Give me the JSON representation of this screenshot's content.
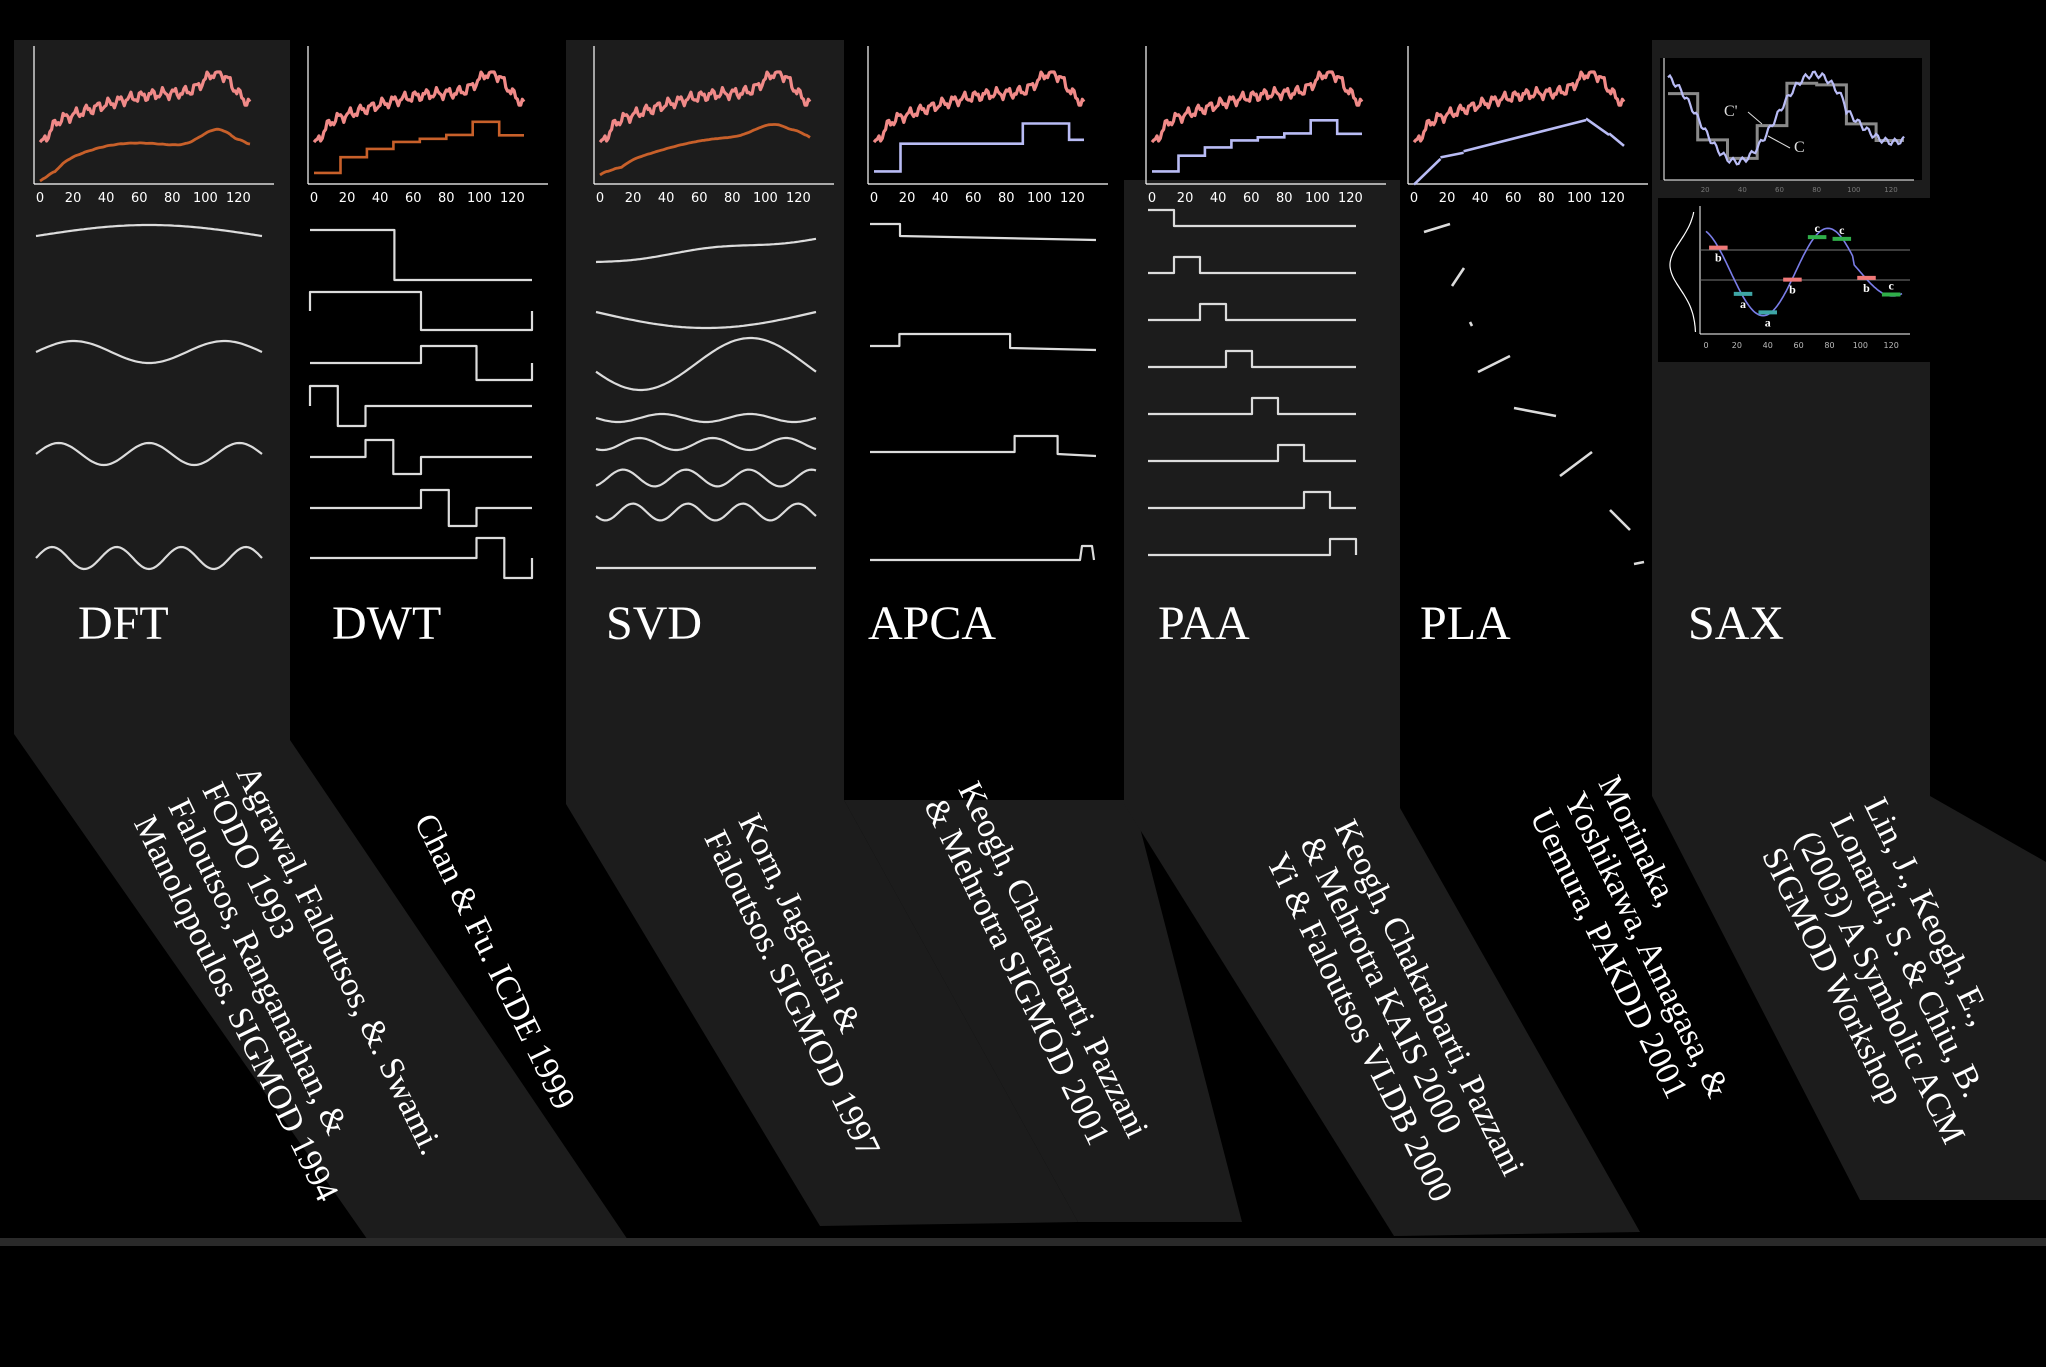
{
  "methods": [
    {
      "abbr": "DFT",
      "ref": [
        "Agrawal, Faloutsos, &. Swami.",
        "FODO 1993",
        "Faloutsos, Ranganathan, &",
        "Manolopoulos. SIGMOD 1994"
      ]
    },
    {
      "abbr": "DWT",
      "ref": [
        "Chan & Fu. ICDE 1999"
      ]
    },
    {
      "abbr": "SVD",
      "ref": [
        "Korn, Jagadish &",
        "Faloutsos. SIGMOD 1997"
      ]
    },
    {
      "abbr": "APCA",
      "ref": [
        "Keogh, Chakrabarti, Pazzani",
        "& Mehrotra SIGMOD 2001"
      ]
    },
    {
      "abbr": "PAA",
      "ref": [
        "Keogh, Chakrabarti, Pazzani",
        "& Mehrotra KAIS 2000",
        "Yi & Faloutsos VLDB 2000"
      ]
    },
    {
      "abbr": "PLA",
      "ref": [
        "Morinaka,",
        "Yoshikawa, Amagasa, &",
        "Uemura, PAKDD 2001"
      ]
    },
    {
      "abbr": "SAX",
      "ref": [
        "Lin, J., Keogh, E.,",
        "Lonardi, S. & Chiu, B.",
        "(2003) A Symbolic ACM",
        "SIGMOD Workshop"
      ]
    }
  ],
  "x_ticks": [
    "0",
    "20",
    "40",
    "60",
    "80",
    "100",
    "120"
  ],
  "sax": {
    "top_labels": [
      "C'",
      "C"
    ],
    "small_ticks": [
      "20",
      "40",
      "60",
      "80",
      "100",
      "120"
    ],
    "symbols": [
      "b",
      "a",
      "a",
      "b",
      "c",
      "c",
      "b",
      "c"
    ],
    "bottom_ticks": [
      "0",
      "20",
      "40",
      "60",
      "80",
      "100",
      "120"
    ]
  },
  "colors": {
    "background": "#000000",
    "panel": "#1c1c1c",
    "original_series": "#f08a88",
    "approx_orange": "#c8602a",
    "approx_lavender": "#b9bcf5",
    "basis_line": "#dcdcdc",
    "sax_a": "#3ea6a6",
    "sax_b": "#f07878",
    "sax_c": "#2fae4a"
  }
}
